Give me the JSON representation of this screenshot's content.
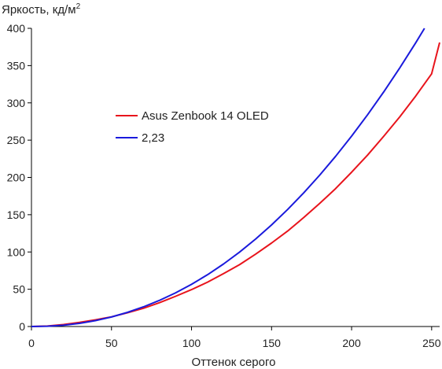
{
  "chart_data": {
    "type": "line",
    "ylabel": "Яркость, кд/м",
    "ylabel_sup": "2",
    "xlabel": "Оттенок серого",
    "xlim": [
      0,
      255
    ],
    "ylim": [
      0,
      400
    ],
    "xticks": [
      0,
      50,
      100,
      150,
      200,
      250
    ],
    "yticks": [
      0,
      50,
      100,
      150,
      200,
      250,
      300,
      350,
      400
    ],
    "grid": false,
    "legend_position": "upper-left-center",
    "series": [
      {
        "name": "Asus Zenbook 14 OLED",
        "color": "#e8141c",
        "x": [
          0,
          10,
          20,
          30,
          40,
          50,
          60,
          70,
          80,
          90,
          100,
          110,
          120,
          130,
          140,
          150,
          160,
          170,
          180,
          190,
          200,
          210,
          220,
          230,
          240,
          250,
          255
        ],
        "y": [
          0,
          0.6,
          2.6,
          5.5,
          9.0,
          13.0,
          18.5,
          24.5,
          32,
          40.5,
          49.5,
          59.5,
          71,
          83,
          97,
          112,
          128,
          146,
          165,
          185,
          207,
          230,
          255,
          281,
          309,
          339,
          381
        ]
      },
      {
        "name": "2,23",
        "color": "#1a1adc",
        "x": [
          0,
          10,
          20,
          30,
          40,
          50,
          60,
          70,
          80,
          90,
          100,
          110,
          120,
          130,
          140,
          150,
          160,
          170,
          180,
          190,
          200,
          210,
          220,
          230,
          240,
          250,
          255
        ],
        "y": [
          0,
          0.4,
          1.7,
          4.2,
          7.9,
          12.8,
          19.0,
          26.4,
          35.1,
          45.1,
          56.6,
          69.5,
          83.9,
          99.8,
          117.3,
          136.3,
          156.9,
          179.1,
          202.9,
          228.3,
          255.4,
          284.1,
          314.5,
          346.6,
          380.4,
          415.8,
          434.2
        ]
      }
    ]
  }
}
